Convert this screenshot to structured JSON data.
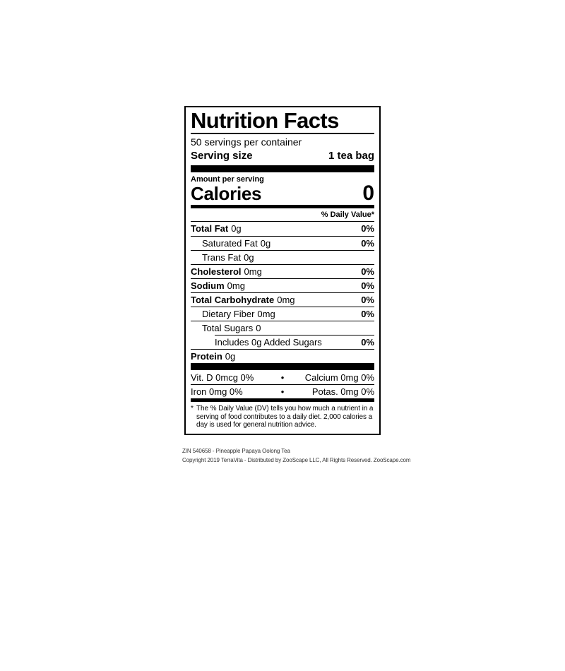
{
  "label": {
    "title": "Nutrition Facts",
    "servings_per_container": "50 servings per container",
    "serving_size": {
      "label": "Serving size",
      "value": "1 tea bag"
    },
    "amount_per_serving": "Amount per serving",
    "calories": {
      "label": "Calories",
      "value": "0"
    },
    "daily_value_header": "% Daily Value*",
    "rows": [
      {
        "name": "Total Fat",
        "amount": "0g",
        "dv": "0%"
      },
      {
        "name": "Saturated Fat",
        "amount": "0g",
        "dv": "0%"
      },
      {
        "name": "Trans Fat",
        "amount": "0g",
        "dv": ""
      },
      {
        "name": "Cholesterol",
        "amount": "0mg",
        "dv": "0%"
      },
      {
        "name": "Sodium",
        "amount": "0mg",
        "dv": "0%"
      },
      {
        "name": "Total Carbohydrate",
        "amount": "0mg",
        "dv": "0%"
      },
      {
        "name": "Dietary Fiber",
        "amount": "0mg",
        "dv": "0%"
      },
      {
        "name": "Total Sugars",
        "amount": "0",
        "dv": ""
      },
      {
        "name": "Includes 0g Added Sugars",
        "amount": "",
        "dv": "0%"
      },
      {
        "name": "Protein",
        "amount": "0g",
        "dv": ""
      }
    ],
    "micronutrients": {
      "bullet": "•",
      "rows": [
        {
          "left": "Vit. D 0mcg 0%",
          "right": "Calcium 0mg 0%"
        },
        {
          "left": "Iron 0mg 0%",
          "right": "Potas. 0mg 0%"
        }
      ]
    },
    "footnote": {
      "marker": "*",
      "text": "The % Daily Value (DV) tells you how much a nutrient in a serving of food contributes to a daily diet. 2,000 calories a day is used for general nutrition advice."
    }
  },
  "footer": {
    "line1": "ZIN 540658 - Pineapple Papaya Oolong Tea",
    "line2": "Copyright 2019 TerraVita - Distributed by ZooScape LLC, All Rights Reserved. ZooScape.com"
  },
  "colors": {
    "text": "#000000",
    "background": "#ffffff",
    "bar": "#000000",
    "footer_text": "#333333"
  }
}
